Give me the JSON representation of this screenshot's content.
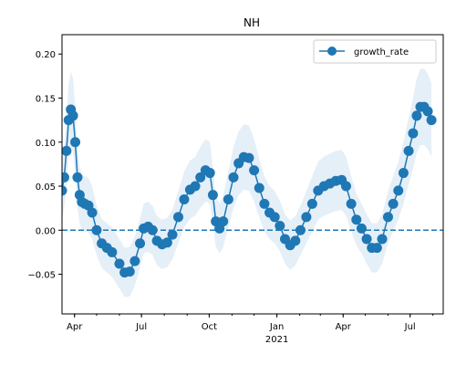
{
  "chart_data": {
    "type": "line",
    "title": "NH",
    "xlabel": "",
    "ylabel": "",
    "x_start": "2020-03-15",
    "x_end": "2021-08-15",
    "xlim": [
      "2020-03-15",
      "2021-08-15"
    ],
    "ylim": [
      -0.095,
      0.222
    ],
    "grid": false,
    "legend": "top-right",
    "x_ticks": [
      {
        "date": "2020-04-01",
        "label": "Apr",
        "sub": ""
      },
      {
        "date": "2020-07-01",
        "label": "Jul",
        "sub": ""
      },
      {
        "date": "2020-10-01",
        "label": "Oct",
        "sub": ""
      },
      {
        "date": "2021-01-01",
        "label": "Jan",
        "sub": "2021"
      },
      {
        "date": "2021-04-01",
        "label": "Apr",
        "sub": ""
      },
      {
        "date": "2021-07-01",
        "label": "Jul",
        "sub": ""
      }
    ],
    "y_ticks": [
      -0.05,
      0.0,
      0.05,
      0.1,
      0.15,
      0.2
    ],
    "y_tick_labels": [
      "−0.05",
      "0.00",
      "0.05",
      "0.10",
      "0.15",
      "0.20"
    ],
    "reference_line": {
      "y": 0.0,
      "style": "dashed"
    },
    "series": [
      {
        "name": "growth_rate",
        "color": "#1f77b4",
        "band_color": "#dce9f5",
        "marker": "circle",
        "points": [
          [
            "2020-03-15",
            0.045
          ],
          [
            "2020-03-18",
            0.06
          ],
          [
            "2020-03-21",
            0.09
          ],
          [
            "2020-03-24",
            0.125
          ],
          [
            "2020-03-27",
            0.137
          ],
          [
            "2020-03-30",
            0.13
          ],
          [
            "2020-04-02",
            0.1
          ],
          [
            "2020-04-05",
            0.06
          ],
          [
            "2020-04-08",
            0.04
          ],
          [
            "2020-04-11",
            0.032
          ],
          [
            "2020-04-15",
            0.03
          ],
          [
            "2020-04-20",
            0.028
          ],
          [
            "2020-04-25",
            0.02
          ],
          [
            "2020-05-01",
            0.0
          ],
          [
            "2020-05-08",
            -0.015
          ],
          [
            "2020-05-15",
            -0.02
          ],
          [
            "2020-05-22",
            -0.025
          ],
          [
            "2020-06-01",
            -0.038
          ],
          [
            "2020-06-08",
            -0.048
          ],
          [
            "2020-06-15",
            -0.047
          ],
          [
            "2020-06-22",
            -0.035
          ],
          [
            "2020-06-29",
            -0.015
          ],
          [
            "2020-07-04",
            0.002
          ],
          [
            "2020-07-10",
            0.004
          ],
          [
            "2020-07-16",
            0.0
          ],
          [
            "2020-07-22",
            -0.012
          ],
          [
            "2020-07-29",
            -0.016
          ],
          [
            "2020-08-05",
            -0.014
          ],
          [
            "2020-08-12",
            -0.005
          ],
          [
            "2020-08-20",
            0.015
          ],
          [
            "2020-08-28",
            0.035
          ],
          [
            "2020-09-05",
            0.046
          ],
          [
            "2020-09-12",
            0.05
          ],
          [
            "2020-09-19",
            0.06
          ],
          [
            "2020-09-26",
            0.068
          ],
          [
            "2020-10-02",
            0.065
          ],
          [
            "2020-10-06",
            0.04
          ],
          [
            "2020-10-10",
            0.01
          ],
          [
            "2020-10-15",
            0.002
          ],
          [
            "2020-10-20",
            0.01
          ],
          [
            "2020-10-27",
            0.035
          ],
          [
            "2020-11-03",
            0.06
          ],
          [
            "2020-11-10",
            0.076
          ],
          [
            "2020-11-17",
            0.083
          ],
          [
            "2020-11-24",
            0.082
          ],
          [
            "2020-12-01",
            0.068
          ],
          [
            "2020-12-08",
            0.048
          ],
          [
            "2020-12-15",
            0.03
          ],
          [
            "2020-12-22",
            0.02
          ],
          [
            "2020-12-29",
            0.015
          ],
          [
            "2021-01-05",
            0.005
          ],
          [
            "2021-01-12",
            -0.01
          ],
          [
            "2021-01-19",
            -0.017
          ],
          [
            "2021-01-26",
            -0.012
          ],
          [
            "2021-02-02",
            0.0
          ],
          [
            "2021-02-10",
            0.015
          ],
          [
            "2021-02-18",
            0.03
          ],
          [
            "2021-02-26",
            0.045
          ],
          [
            "2021-03-06",
            0.05
          ],
          [
            "2021-03-14",
            0.053
          ],
          [
            "2021-03-22",
            0.056
          ],
          [
            "2021-03-30",
            0.057
          ],
          [
            "2021-04-05",
            0.05
          ],
          [
            "2021-04-12",
            0.03
          ],
          [
            "2021-04-19",
            0.012
          ],
          [
            "2021-04-26",
            0.002
          ],
          [
            "2021-05-03",
            -0.01
          ],
          [
            "2021-05-10",
            -0.02
          ],
          [
            "2021-05-17",
            -0.02
          ],
          [
            "2021-05-24",
            -0.01
          ],
          [
            "2021-06-01",
            0.015
          ],
          [
            "2021-06-08",
            0.03
          ],
          [
            "2021-06-15",
            0.045
          ],
          [
            "2021-06-22",
            0.065
          ],
          [
            "2021-06-29",
            0.09
          ],
          [
            "2021-07-05",
            0.11
          ],
          [
            "2021-07-10",
            0.13
          ],
          [
            "2021-07-15",
            0.14
          ],
          [
            "2021-07-20",
            0.14
          ],
          [
            "2021-07-25",
            0.135
          ],
          [
            "2021-07-30",
            0.125
          ]
        ]
      }
    ]
  }
}
